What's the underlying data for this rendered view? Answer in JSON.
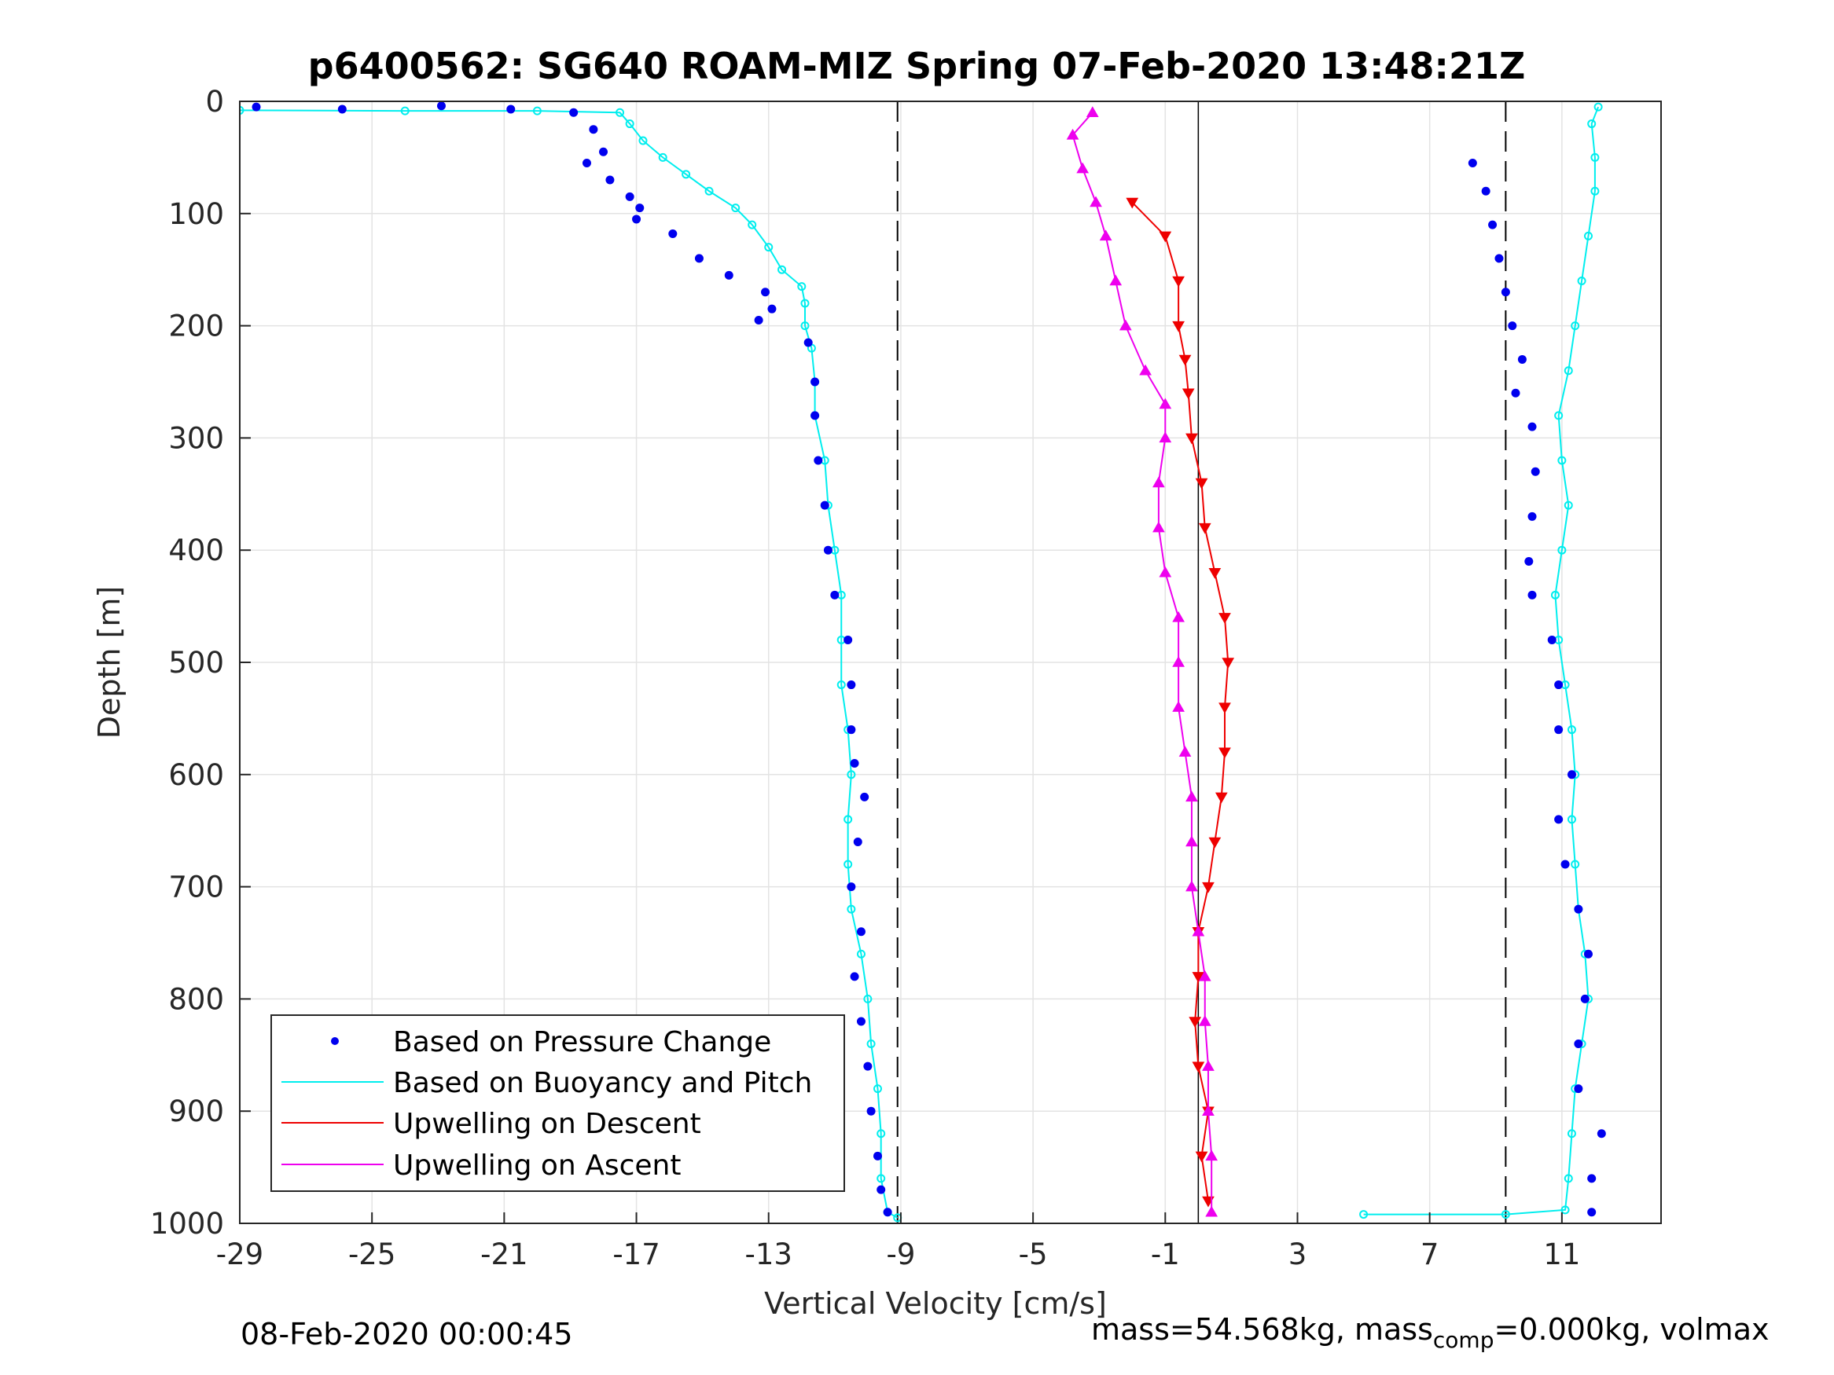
{
  "chart_data": {
    "type": "scatter",
    "title": "p6400562: SG640 ROAM-MIZ Spring 07-Feb-2020 13:48:21Z",
    "xlabel": "Vertical Velocity [cm/s]",
    "ylabel": "Depth [m]",
    "xlim": [
      -29,
      14
    ],
    "ylim": [
      1000,
      0
    ],
    "y_reversed": true,
    "xticks": [
      "-29",
      "-25",
      "-21",
      "-17",
      "-13",
      "-9",
      "-5",
      "-1",
      "3",
      "7",
      "11"
    ],
    "yticks": [
      "0",
      "100",
      "200",
      "300",
      "400",
      "500",
      "600",
      "700",
      "800",
      "900",
      "1000"
    ],
    "grid": true,
    "legend": {
      "position": "bottom-left",
      "entries": [
        "Based on Pressure Change",
        "Based on Buoyancy and Pitch",
        "Upwelling on Descent",
        "Upwelling on Ascent"
      ]
    },
    "reference_lines": {
      "dashed_x": [
        -9.1,
        9.3
      ],
      "solid_x": [
        0
      ]
    },
    "series": [
      {
        "name": "Based on Pressure Change",
        "color": "#0000ee",
        "marker": "dot",
        "descent": [
          [
            -28.5,
            5
          ],
          [
            -25.9,
            7
          ],
          [
            -22.9,
            4
          ],
          [
            -20.8,
            7
          ],
          [
            -18.9,
            10
          ],
          [
            -18.3,
            25
          ],
          [
            -18.0,
            45
          ],
          [
            -18.5,
            55
          ],
          [
            -17.8,
            70
          ],
          [
            -17.2,
            85
          ],
          [
            -16.9,
            95
          ],
          [
            -17.0,
            105
          ],
          [
            -15.9,
            118
          ],
          [
            -15.1,
            140
          ],
          [
            -14.2,
            155
          ],
          [
            -13.1,
            170
          ],
          [
            -12.9,
            185
          ],
          [
            -13.3,
            195
          ],
          [
            -11.8,
            215
          ],
          [
            -11.6,
            250
          ],
          [
            -11.6,
            280
          ],
          [
            -11.5,
            320
          ],
          [
            -11.3,
            360
          ],
          [
            -11.2,
            400
          ],
          [
            -11.0,
            440
          ],
          [
            -10.6,
            480
          ],
          [
            -10.5,
            520
          ],
          [
            -10.5,
            560
          ],
          [
            -10.4,
            590
          ],
          [
            -10.1,
            620
          ],
          [
            -10.3,
            660
          ],
          [
            -10.5,
            700
          ],
          [
            -10.2,
            740
          ],
          [
            -10.4,
            780
          ],
          [
            -10.2,
            820
          ],
          [
            -10.0,
            860
          ],
          [
            -9.9,
            900
          ],
          [
            -9.7,
            940
          ],
          [
            -9.6,
            970
          ],
          [
            -9.4,
            990
          ]
        ],
        "ascent": [
          [
            8.3,
            55
          ],
          [
            8.7,
            80
          ],
          [
            8.9,
            110
          ],
          [
            9.1,
            140
          ],
          [
            9.3,
            170
          ],
          [
            9.5,
            200
          ],
          [
            9.8,
            230
          ],
          [
            9.6,
            260
          ],
          [
            10.1,
            290
          ],
          [
            10.2,
            330
          ],
          [
            10.1,
            370
          ],
          [
            10.0,
            410
          ],
          [
            10.1,
            440
          ],
          [
            10.7,
            480
          ],
          [
            10.9,
            520
          ],
          [
            10.9,
            560
          ],
          [
            11.3,
            600
          ],
          [
            10.9,
            640
          ],
          [
            11.1,
            680
          ],
          [
            11.5,
            720
          ],
          [
            11.8,
            760
          ],
          [
            11.7,
            800
          ],
          [
            11.5,
            840
          ],
          [
            11.5,
            880
          ],
          [
            12.2,
            920
          ],
          [
            11.9,
            960
          ],
          [
            11.9,
            990
          ]
        ]
      },
      {
        "name": "Based on Buoyancy and Pitch",
        "color": "#00eeee",
        "marker": "circle-line",
        "descent": [
          [
            -29,
            8
          ],
          [
            -24,
            8.5
          ],
          [
            -20,
            8.5
          ],
          [
            -17.5,
            10
          ],
          [
            -17.2,
            20
          ],
          [
            -16.8,
            35
          ],
          [
            -16.2,
            50
          ],
          [
            -15.5,
            65
          ],
          [
            -14.8,
            80
          ],
          [
            -14.0,
            95
          ],
          [
            -13.5,
            110
          ],
          [
            -13.0,
            130
          ],
          [
            -12.6,
            150
          ],
          [
            -12.0,
            165
          ],
          [
            -11.9,
            180
          ],
          [
            -11.9,
            200
          ],
          [
            -11.7,
            220
          ],
          [
            -11.6,
            250
          ],
          [
            -11.6,
            280
          ],
          [
            -11.3,
            320
          ],
          [
            -11.2,
            360
          ],
          [
            -11.0,
            400
          ],
          [
            -10.8,
            440
          ],
          [
            -10.8,
            480
          ],
          [
            -10.8,
            520
          ],
          [
            -10.6,
            560
          ],
          [
            -10.5,
            600
          ],
          [
            -10.6,
            640
          ],
          [
            -10.6,
            680
          ],
          [
            -10.5,
            720
          ],
          [
            -10.2,
            760
          ],
          [
            -10.0,
            800
          ],
          [
            -9.9,
            840
          ],
          [
            -9.7,
            880
          ],
          [
            -9.6,
            920
          ],
          [
            -9.6,
            960
          ],
          [
            -9.4,
            990
          ],
          [
            -9.1,
            995
          ]
        ],
        "ascent": [
          [
            5.0,
            992
          ],
          [
            9.3,
            992
          ],
          [
            11.1,
            988
          ],
          [
            11.2,
            960
          ],
          [
            11.3,
            920
          ],
          [
            11.4,
            880
          ],
          [
            11.6,
            840
          ],
          [
            11.8,
            800
          ],
          [
            11.7,
            760
          ],
          [
            11.5,
            720
          ],
          [
            11.4,
            680
          ],
          [
            11.3,
            640
          ],
          [
            11.4,
            600
          ],
          [
            11.3,
            560
          ],
          [
            11.1,
            520
          ],
          [
            10.9,
            480
          ],
          [
            10.8,
            440
          ],
          [
            11.0,
            400
          ],
          [
            11.2,
            360
          ],
          [
            11.0,
            320
          ],
          [
            10.9,
            280
          ],
          [
            11.2,
            240
          ],
          [
            11.4,
            200
          ],
          [
            11.6,
            160
          ],
          [
            11.8,
            120
          ],
          [
            12.0,
            80
          ],
          [
            12.0,
            50
          ],
          [
            11.9,
            20
          ],
          [
            12.1,
            5
          ]
        ]
      },
      {
        "name": "Upwelling on Descent",
        "color": "#ee0000",
        "marker": "triangle-down",
        "values": [
          [
            -2.0,
            90
          ],
          [
            -1.0,
            120
          ],
          [
            -0.6,
            160
          ],
          [
            -0.6,
            200
          ],
          [
            -0.4,
            230
          ],
          [
            -0.3,
            260
          ],
          [
            -0.2,
            300
          ],
          [
            0.1,
            340
          ],
          [
            0.2,
            380
          ],
          [
            0.5,
            420
          ],
          [
            0.8,
            460
          ],
          [
            0.9,
            500
          ],
          [
            0.8,
            540
          ],
          [
            0.8,
            580
          ],
          [
            0.7,
            620
          ],
          [
            0.5,
            660
          ],
          [
            0.3,
            700
          ],
          [
            0.0,
            740
          ],
          [
            0.0,
            780
          ],
          [
            -0.1,
            820
          ],
          [
            0.0,
            860
          ],
          [
            0.3,
            900
          ],
          [
            0.1,
            940
          ],
          [
            0.3,
            980
          ]
        ]
      },
      {
        "name": "Upwelling on Ascent",
        "color": "#ee00ee",
        "marker": "triangle-up",
        "values": [
          [
            -3.2,
            10
          ],
          [
            -3.8,
            30
          ],
          [
            -3.5,
            60
          ],
          [
            -3.1,
            90
          ],
          [
            -2.8,
            120
          ],
          [
            -2.5,
            160
          ],
          [
            -2.2,
            200
          ],
          [
            -1.6,
            240
          ],
          [
            -1.0,
            270
          ],
          [
            -1.0,
            300
          ],
          [
            -1.2,
            340
          ],
          [
            -1.2,
            380
          ],
          [
            -1.0,
            420
          ],
          [
            -0.6,
            460
          ],
          [
            -0.6,
            500
          ],
          [
            -0.6,
            540
          ],
          [
            -0.4,
            580
          ],
          [
            -0.2,
            620
          ],
          [
            -0.2,
            660
          ],
          [
            -0.2,
            700
          ],
          [
            0.0,
            740
          ],
          [
            0.2,
            780
          ],
          [
            0.2,
            820
          ],
          [
            0.3,
            860
          ],
          [
            0.3,
            900
          ],
          [
            0.4,
            940
          ],
          [
            0.4,
            990
          ]
        ]
      }
    ]
  },
  "footer": {
    "timestamp": "08-Feb-2020 00:00:45",
    "mass_text_main": "mass=54.568kg, mass",
    "mass_text_sub": "comp",
    "mass_text_tail": "=0.000kg, volmax"
  }
}
